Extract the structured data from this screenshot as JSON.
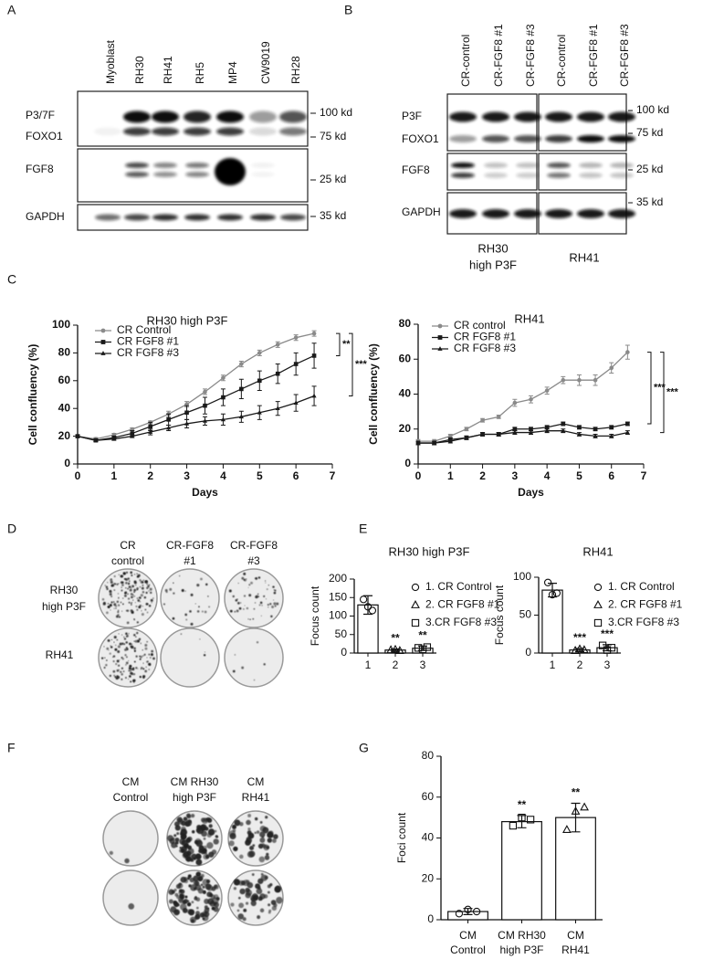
{
  "panel_labels": [
    "A",
    "B",
    "C",
    "D",
    "E",
    "F",
    "G"
  ],
  "blot_a": {
    "lanes": [
      "Myoblast",
      "RH30",
      "RH41",
      "RH5",
      "MP4",
      "CW9019",
      "RH28"
    ],
    "rows": [
      "P3/7F",
      "FOXO1",
      "FGF8",
      "GAPDH"
    ],
    "sizes": [
      "100 kd",
      "75 kd",
      "25 kd",
      "35 kd"
    ]
  },
  "blot_b": {
    "lanes": [
      "CR-control",
      "CR-FGF8 #1",
      "CR-FGF8 #3",
      "CR-control",
      "CR-FGF8 #1",
      "CR-FGF8 #3"
    ],
    "rows": [
      "P3F",
      "FOXO1",
      "FGF8",
      "GAPDH"
    ],
    "sizes": [
      "100 kd",
      "75 kd",
      "25 kd",
      "35 kd"
    ],
    "groups": [
      [
        "RH30",
        "high P3F"
      ],
      [
        "RH41"
      ]
    ]
  },
  "plates_d": {
    "columns": [
      [
        "CR",
        "control"
      ],
      [
        "CR-FGF8",
        "#1"
      ],
      [
        "CR-FGF8",
        "#3"
      ]
    ],
    "rows": [
      [
        "RH30",
        "high P3F"
      ],
      [
        "RH41"
      ]
    ]
  },
  "plates_f": {
    "columns": [
      [
        "CM",
        "Control"
      ],
      [
        "CM RH30",
        "high P3F"
      ],
      [
        "CM",
        "RH41"
      ]
    ]
  },
  "chart_data": [
    {
      "type": "line",
      "title": "RH30 high P3F",
      "xlabel": "Days",
      "ylabel": "Cell confluency (%)",
      "x": [
        0,
        0.5,
        1,
        1.5,
        2,
        2.5,
        3,
        3.5,
        4,
        4.5,
        5,
        5.5,
        6,
        6.5
      ],
      "series": [
        {
          "name": "CR Control",
          "color": "#8a8a8a",
          "marker": "circle",
          "values": [
            20,
            18,
            21,
            25,
            30,
            36,
            43,
            52,
            62,
            72,
            80,
            86,
            91,
            94
          ],
          "errors": [
            1,
            1,
            1,
            1,
            1,
            2,
            2,
            2,
            2,
            2,
            2,
            2,
            2,
            2
          ]
        },
        {
          "name": "CR FGF8 #1",
          "color": "#1a1a1a",
          "marker": "square",
          "values": [
            20,
            17,
            19,
            22,
            27,
            32,
            37,
            42,
            48,
            54,
            60,
            65,
            72,
            78
          ],
          "errors": [
            1,
            1,
            1,
            2,
            3,
            4,
            5,
            6,
            6,
            7,
            7,
            7,
            8,
            9
          ]
        },
        {
          "name": "CR FGF8 #3",
          "color": "#1a1a1a",
          "marker": "triangle",
          "values": [
            20,
            17,
            18,
            20,
            23,
            26,
            29,
            31,
            32,
            34,
            37,
            40,
            44,
            49
          ],
          "errors": [
            1,
            1,
            1,
            1,
            2,
            2,
            3,
            3,
            4,
            4,
            5,
            5,
            6,
            7
          ]
        }
      ],
      "xlim": [
        0,
        7
      ],
      "xticks": [
        0,
        1,
        2,
        3,
        4,
        5,
        6,
        7
      ],
      "ylim": [
        0,
        100
      ],
      "yticks": [
        0,
        20,
        40,
        60,
        80,
        100
      ],
      "annotations": [
        "**",
        "***"
      ],
      "legend": "upper left"
    },
    {
      "type": "line",
      "title": "RH41",
      "xlabel": "Days",
      "ylabel": "Cell confluency (%)",
      "x": [
        0,
        0.5,
        1,
        1.5,
        2,
        2.5,
        3,
        3.5,
        4,
        4.5,
        5,
        5.5,
        6,
        6.5
      ],
      "series": [
        {
          "name": "CR control",
          "color": "#8a8a8a",
          "marker": "circle",
          "values": [
            13,
            13,
            16,
            20,
            25,
            27,
            35,
            37,
            42,
            48,
            48,
            48,
            55,
            64
          ],
          "errors": [
            1,
            1,
            1,
            1,
            1,
            1,
            2,
            2,
            2,
            2,
            3,
            3,
            3,
            4
          ]
        },
        {
          "name": "CR FGF8 #1",
          "color": "#1a1a1a",
          "marker": "square",
          "values": [
            12,
            12,
            14,
            15,
            17,
            17,
            20,
            20,
            21,
            23,
            21,
            20,
            21,
            23
          ],
          "errors": [
            1,
            1,
            1,
            1,
            1,
            1,
            1,
            1,
            1,
            1,
            1,
            1,
            1,
            1
          ]
        },
        {
          "name": "CR FGF8 #3",
          "color": "#1a1a1a",
          "marker": "triangle",
          "values": [
            12,
            12,
            13,
            15,
            17,
            17,
            18,
            18,
            19,
            19,
            17,
            16,
            16,
            18
          ],
          "errors": [
            1,
            1,
            1,
            1,
            1,
            1,
            1,
            1,
            1,
            1,
            1,
            1,
            1,
            1
          ]
        }
      ],
      "xlim": [
        0,
        7
      ],
      "xticks": [
        0,
        1,
        2,
        3,
        4,
        5,
        6,
        7
      ],
      "ylim": [
        0,
        80
      ],
      "yticks": [
        0,
        20,
        40,
        60,
        80
      ],
      "annotations": [
        "***",
        "***"
      ],
      "legend": "upper left"
    },
    {
      "type": "bar",
      "title": "RH30 high P3F",
      "ylabel": "Focus count",
      "categories": [
        "1",
        "2",
        "3"
      ],
      "values": [
        130,
        8,
        13
      ],
      "errors": [
        25,
        3,
        6
      ],
      "points": [
        [
          145,
          125,
          115
        ],
        [
          8,
          9,
          6
        ],
        [
          14,
          10,
          16
        ]
      ],
      "markers": [
        "circle",
        "triangle",
        "square"
      ],
      "legend_entries": [
        "1. CR Control",
        "2. CR FGF8 #1",
        "3.CR FGF8 #3"
      ],
      "significance": [
        null,
        "**",
        "**"
      ],
      "color": "#ffffff",
      "ylim": [
        0,
        200
      ],
      "yticks": [
        0,
        50,
        100,
        150,
        200
      ]
    },
    {
      "type": "bar",
      "title": "RH41",
      "ylabel": "Focus count",
      "categories": [
        "1",
        "2",
        "3"
      ],
      "values": [
        83,
        4,
        7
      ],
      "errors": [
        9,
        2,
        4
      ],
      "points": [
        [
          93,
          77,
          79
        ],
        [
          3,
          5,
          4
        ],
        [
          10,
          4,
          7
        ]
      ],
      "markers": [
        "circle",
        "triangle",
        "square"
      ],
      "legend_entries": [
        "1. CR Control",
        "2. CR FGF8 #1",
        "3.CR FGF8 #3"
      ],
      "significance": [
        null,
        "***",
        "***"
      ],
      "color": "#ffffff",
      "ylim": [
        0,
        100
      ],
      "yticks": [
        0,
        50,
        100
      ]
    },
    {
      "type": "bar",
      "ylabel": "Foci count",
      "categories": [
        [
          "CM",
          "Control"
        ],
        [
          "CM RH30",
          "high P3F"
        ],
        [
          "CM",
          "RH41"
        ]
      ],
      "values": [
        4,
        48,
        50
      ],
      "errors": [
        1.5,
        3,
        7
      ],
      "points": [
        [
          3,
          5,
          4
        ],
        [
          46,
          50,
          49
        ],
        [
          44,
          53,
          55
        ]
      ],
      "markers": [
        "circle",
        "square",
        "triangle"
      ],
      "significance": [
        null,
        "**",
        "**"
      ],
      "color": "#ffffff",
      "ylim": [
        0,
        80
      ],
      "yticks": [
        0,
        20,
        40,
        60,
        80
      ]
    }
  ]
}
